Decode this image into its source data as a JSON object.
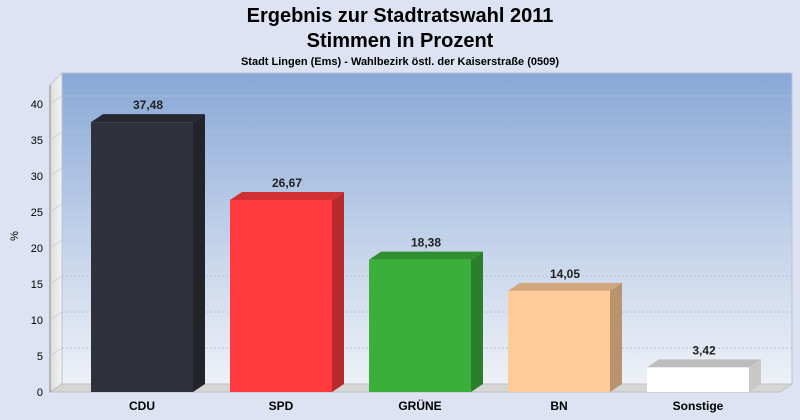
{
  "chart_data": {
    "type": "bar",
    "title": "Ergebnis zur Stadtratswahl 2011",
    "title_line2": "Stimmen in Prozent",
    "subtitle": "Stadt Lingen (Ems) - Wahlbezirk östl. der Kaiserstraße (0509)",
    "ylabel": "%",
    "xlabel": "",
    "ylim": [
      0,
      40
    ],
    "yticks": [
      "0",
      "5",
      "10",
      "15",
      "20",
      "25",
      "30",
      "35",
      "40"
    ],
    "grid": true,
    "legend": "none",
    "categories": [
      "CDU",
      "SPD",
      "GRÜNE",
      "BN",
      "Sonstige"
    ],
    "values": [
      37.48,
      26.67,
      18.38,
      14.05,
      3.42
    ],
    "value_labels": [
      "37,48",
      "26,67",
      "18,38",
      "14,05",
      "3,42"
    ],
    "colors": [
      "#2f323a",
      "#ff3a3e",
      "#3ab03a",
      "#ffcc99",
      "#ffffff"
    ]
  }
}
